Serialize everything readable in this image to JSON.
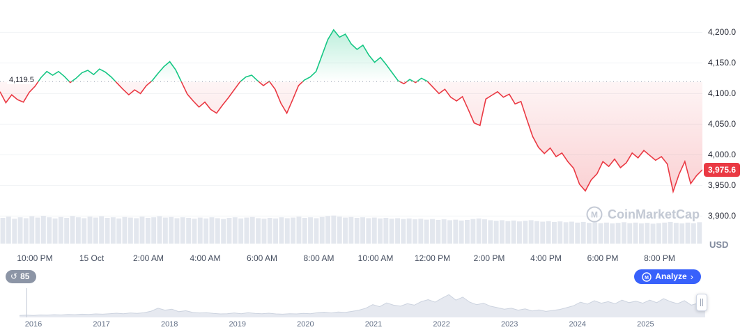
{
  "watermark": "CoinMarketCap",
  "chart_data": {
    "type": "line",
    "title": "",
    "unit": "USD",
    "baseline": 4119.5,
    "baseline_label": "4,119.5",
    "current_price": 3975.6,
    "current_price_label": "3,975.6",
    "ylim": [
      3880,
      4230
    ],
    "grid": true,
    "legend_position": "none",
    "y_tick_values": [
      4200,
      4150,
      4100,
      4050,
      4000,
      3950,
      3900
    ],
    "y_tick_labels": [
      "4,200.0",
      "4,150.0",
      "4,100.0",
      "4,050.0",
      "4,000.0",
      "3,950.0",
      "3,900.0"
    ],
    "x_ticks": [
      "10:00 PM",
      "15 Oct",
      "2:00 AM",
      "4:00 AM",
      "6:00 AM",
      "8:00 AM",
      "10:00 AM",
      "12:00 PM",
      "2:00 PM",
      "4:00 PM",
      "6:00 PM",
      "8:00 PM"
    ],
    "series": [
      {
        "name": "price",
        "values": [
          4103,
          4085,
          4098,
          4090,
          4086,
          4102,
          4112,
          4126,
          4136,
          4130,
          4136,
          4128,
          4118,
          4125,
          4134,
          4138,
          4131,
          4140,
          4135,
          4127,
          4117,
          4107,
          4098,
          4106,
          4100,
          4113,
          4121,
          4133,
          4144,
          4152,
          4139,
          4119,
          4099,
          4088,
          4078,
          4086,
          4074,
          4068,
          4081,
          4093,
          4106,
          4119,
          4127,
          4130,
          4121,
          4113,
          4120,
          4107,
          4084,
          4068,
          4090,
          4113,
          4122,
          4127,
          4136,
          4162,
          4188,
          4204,
          4192,
          4197,
          4181,
          4172,
          4179,
          4163,
          4151,
          4159,
          4147,
          4134,
          4121,
          4116,
          4123,
          4118,
          4125,
          4120,
          4110,
          4100,
          4107,
          4094,
          4088,
          4095,
          4074,
          4052,
          4048,
          4091,
          4097,
          4103,
          4094,
          4099,
          4083,
          4087,
          4058,
          4030,
          4012,
          4002,
          4011,
          3997,
          4003,
          3989,
          3978,
          3952,
          3941,
          3959,
          3969,
          3989,
          3981,
          3993,
          3979,
          3987,
          4003,
          3995,
          4007,
          3999,
          3991,
          3997,
          3985,
          3940,
          3968,
          3989,
          3953,
          3966,
          3975.6
        ]
      }
    ],
    "volume": [
      0.88,
      0.92,
      0.85,
      0.9,
      0.87,
      0.93,
      0.89,
      0.95,
      0.9,
      0.86,
      0.91,
      0.88,
      0.94,
      0.9,
      0.87,
      0.92,
      0.89,
      0.93,
      0.88,
      0.9,
      0.86,
      0.91,
      0.89,
      0.87,
      0.92,
      0.88,
      0.9,
      0.93,
      0.89,
      0.91,
      0.87,
      0.9,
      0.88,
      0.85,
      0.89,
      0.86,
      0.9,
      0.87,
      0.84,
      0.88,
      0.9,
      0.86,
      0.89,
      0.91,
      0.87,
      0.85,
      0.88,
      0.86,
      0.9,
      0.87,
      0.89,
      0.92,
      0.88,
      0.9,
      0.87,
      0.91,
      0.94,
      0.96,
      0.92,
      0.89,
      0.91,
      0.88,
      0.9,
      0.87,
      0.89,
      0.86,
      0.88,
      0.85,
      0.87,
      0.84,
      0.86,
      0.83,
      0.85,
      0.82,
      0.84,
      0.81,
      0.83,
      0.8,
      0.82,
      0.79,
      0.81,
      0.84,
      0.86,
      0.83,
      0.8,
      0.78,
      0.8,
      0.77,
      0.79,
      0.76,
      0.78,
      0.8,
      0.77,
      0.75,
      0.77,
      0.74,
      0.76,
      0.73,
      0.75,
      0.72,
      0.74,
      0.71,
      0.73,
      0.7,
      0.72,
      0.69,
      0.71,
      0.73,
      0.7,
      0.72,
      0.69,
      0.71,
      0.68,
      0.7,
      0.72,
      0.74,
      0.71,
      0.69,
      0.72,
      0.7,
      0.73
    ],
    "colors": {
      "up": "#16c784",
      "down": "#ea3943",
      "current_badge": "#ea3943",
      "volume_bar": "#e3e7ee",
      "accent_blue": "#3861fb"
    }
  },
  "minimap": {
    "years": [
      "2016",
      "2017",
      "2018",
      "2019",
      "2020",
      "2021",
      "2022",
      "2023",
      "2024",
      "2025"
    ],
    "values": [
      0.05,
      0.06,
      0.05,
      0.07,
      0.06,
      0.08,
      0.07,
      0.09,
      0.08,
      0.1,
      0.09,
      0.11,
      0.1,
      0.12,
      0.14,
      0.12,
      0.15,
      0.13,
      0.16,
      0.22,
      0.34,
      0.26,
      0.3,
      0.2,
      0.24,
      0.17,
      0.15,
      0.16,
      0.13,
      0.11,
      0.12,
      0.15,
      0.12,
      0.16,
      0.13,
      0.12,
      0.14,
      0.11,
      0.1,
      0.12,
      0.11,
      0.13,
      0.12,
      0.16,
      0.18,
      0.15,
      0.19,
      0.17,
      0.21,
      0.26,
      0.34,
      0.48,
      0.4,
      0.55,
      0.46,
      0.42,
      0.52,
      0.46,
      0.6,
      0.68,
      0.58,
      0.74,
      0.88,
      0.66,
      0.78,
      0.58,
      0.48,
      0.54,
      0.42,
      0.36,
      0.3,
      0.34,
      0.26,
      0.31,
      0.23,
      0.27,
      0.21,
      0.25,
      0.29,
      0.36,
      0.44,
      0.58,
      0.5,
      0.64,
      0.54,
      0.6,
      0.52,
      0.66,
      0.56,
      0.62,
      0.54,
      0.66,
      0.56,
      0.72,
      0.6,
      0.52,
      0.64,
      0.46,
      0.54,
      0.32
    ]
  },
  "footer": {
    "history_count": "85",
    "analyze_label": "Analyze"
  }
}
